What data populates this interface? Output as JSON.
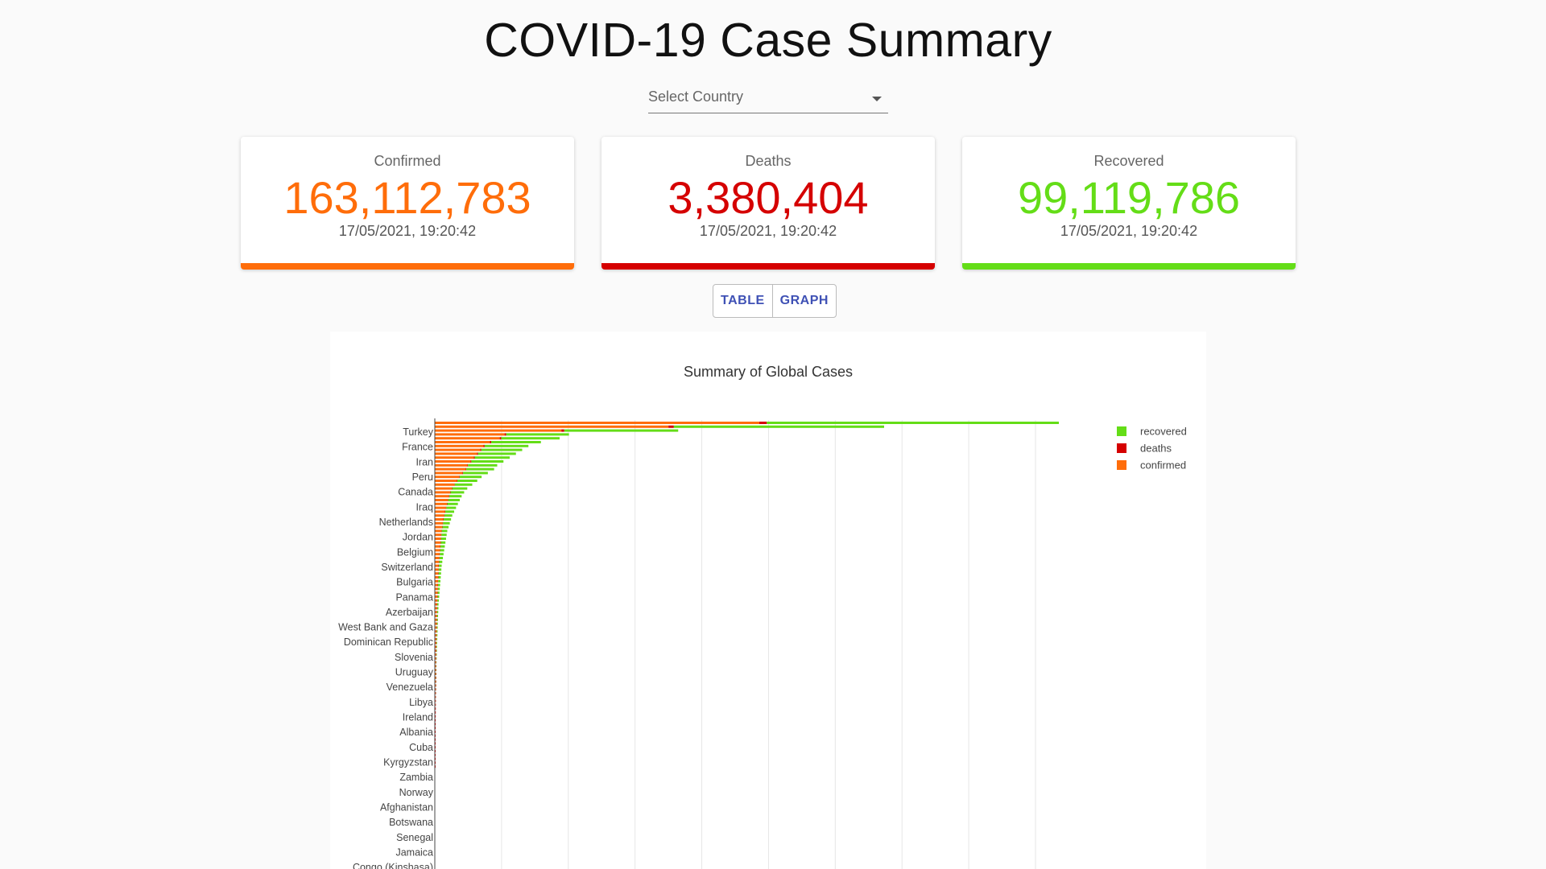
{
  "page": {
    "title": "COVID-19 Case Summary"
  },
  "country_select": {
    "placeholder": "Select Country"
  },
  "cards": [
    {
      "label": "Confirmed",
      "value": "163,112,783",
      "timestamp": "17/05/2021, 19:20:42",
      "color": "#ff6d0a"
    },
    {
      "label": "Deaths",
      "value": "3,380,404",
      "timestamp": "17/05/2021, 19:20:42",
      "color": "#d50000"
    },
    {
      "label": "Recovered",
      "value": "99,119,786",
      "timestamp": "17/05/2021, 19:20:42",
      "color": "#64dd17"
    }
  ],
  "view_toggle": {
    "table_label": "TABLE",
    "graph_label": "GRAPH"
  },
  "colors": {
    "confirmed": "#ff6d0a",
    "deaths": "#d50000",
    "recovered": "#64dd17",
    "grid": "#e6e6e6"
  },
  "chart_data": {
    "type": "bar",
    "orientation": "horizontal",
    "barmode": "stack",
    "title": "Summary of Global Cases",
    "legend_position": "top-right",
    "grid": true,
    "series": [
      {
        "name": "recovered",
        "color": "#64dd17"
      },
      {
        "name": "deaths",
        "color": "#d50000"
      },
      {
        "name": "confirmed",
        "color": "#ff6d0a"
      }
    ],
    "categories": [
      "Turkey",
      "France",
      "Iran",
      "Peru",
      "Canada",
      "Iraq",
      "Netherlands",
      "Jordan",
      "Belgium",
      "Switzerland",
      "Bulgaria",
      "Panama",
      "Azerbaijan",
      "West Bank and Gaza",
      "Dominican Republic",
      "Slovenia",
      "Uruguay",
      "Venezuela",
      "Libya",
      "Ireland",
      "Albania",
      "Cuba",
      "Kyrgyzstan",
      "Zambia",
      "Norway",
      "Afghanistan",
      "Botswana",
      "Senegal",
      "Jamaica",
      "Congo (Kinshasa)"
    ],
    "stacked_totals_rel": [
      1.0,
      0.72,
      0.39,
      0.215,
      0.2,
      0.17,
      0.15,
      0.14,
      0.13,
      0.12,
      0.11,
      0.1,
      0.095,
      0.085,
      0.075,
      0.068,
      0.06,
      0.052,
      0.047,
      0.043,
      0.04,
      0.037,
      0.034,
      0.031,
      0.028,
      0.026,
      0.024,
      0.022,
      0.02,
      0.019,
      0.018,
      0.017,
      0.016,
      0.015,
      0.014,
      0.013,
      0.012,
      0.011,
      0.0105,
      0.01,
      0.0095,
      0.009,
      0.0085,
      0.008,
      0.0075,
      0.007,
      0.0065,
      0.006,
      0.0058,
      0.0055,
      0.0052,
      0.005,
      0.0048,
      0.0046,
      0.0044,
      0.0042,
      0.004,
      0.0038,
      0.0036,
      0.0034,
      0.0032,
      0.003,
      0.0028,
      0.0027,
      0.0026,
      0.0025,
      0.0024,
      0.0023,
      0.0022,
      0.0021,
      0.002,
      0.0019,
      0.0018,
      0.0017,
      0.0016,
      0.0015,
      0.0014,
      0.0013,
      0.0012,
      0.0011,
      0.001,
      0.001,
      0.001,
      0.001,
      0.001,
      0.001,
      0.001,
      0.001,
      0.001,
      0.001
    ]
  }
}
